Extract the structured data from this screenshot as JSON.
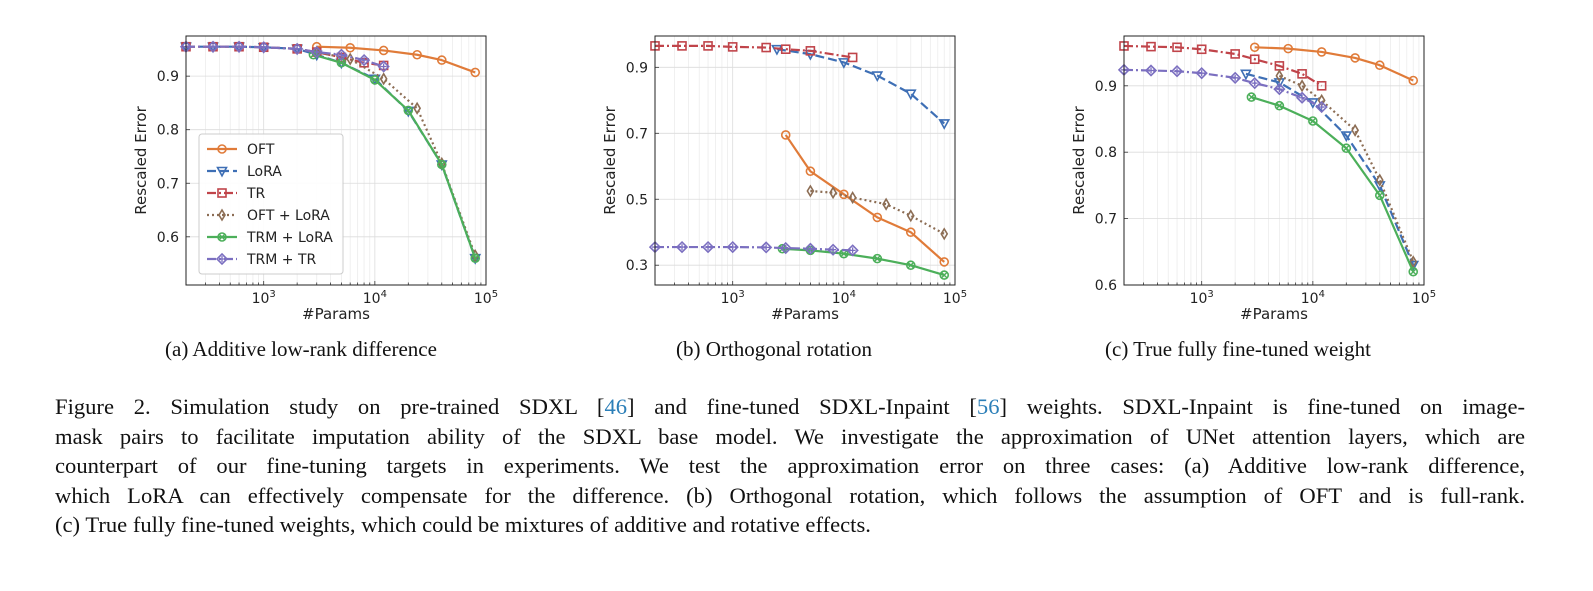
{
  "colors": {
    "OFT": "#e07b39",
    "LoRA": "#3e6fb5",
    "TR": "#c0444a",
    "OFT + LoRA": "#8c6d54",
    "TRM + LoRA": "#4caf5a",
    "TRM + TR": "#7b6fc0",
    "ref_link": "#2c7fb8"
  },
  "chart_data": [
    {
      "type": "line",
      "subtitle": "(a) Additive low-rank difference",
      "xlabel": "#Params",
      "ylabel": "Rescaled Error",
      "xscale": "log",
      "xlim": [
        200,
        100000
      ],
      "ylim": [
        0.51,
        0.975
      ],
      "yticks": [
        0.6,
        0.7,
        0.8,
        0.9
      ],
      "xticks": [
        "10^3",
        "10^4",
        "10^5"
      ],
      "grid": true,
      "legend": "lower-left",
      "series": [
        {
          "name": "OFT",
          "marker": "circle",
          "dash": "solid",
          "x": [
            3000,
            6000,
            12000,
            24000,
            40000,
            80000
          ],
          "y": [
            0.955,
            0.953,
            0.948,
            0.94,
            0.93,
            0.907
          ]
        },
        {
          "name": "LoRA",
          "marker": "triangle-down",
          "dash": "dashed",
          "x": [
            200,
            350,
            600,
            1000,
            2000,
            3000,
            5000,
            10000,
            20000,
            40000,
            80000
          ],
          "y": [
            0.955,
            0.955,
            0.955,
            0.954,
            0.951,
            0.94,
            0.925,
            0.895,
            0.835,
            0.735,
            0.56
          ]
        },
        {
          "name": "TR",
          "marker": "square",
          "dash": "dashdot",
          "x": [
            200,
            350,
            600,
            1000,
            2000,
            3000,
            5000,
            8000,
            12000
          ],
          "y": [
            0.955,
            0.955,
            0.955,
            0.954,
            0.951,
            0.945,
            0.935,
            0.925,
            0.92
          ]
        },
        {
          "name": "OFT + LoRA",
          "marker": "diamond",
          "dash": "dotted",
          "x": [
            3000,
            6000,
            12000,
            24000,
            40000,
            80000
          ],
          "y": [
            0.945,
            0.932,
            0.895,
            0.84,
            0.737,
            0.565
          ]
        },
        {
          "name": "TRM + LoRA",
          "marker": "x",
          "dash": "solid",
          "x": [
            2800,
            5000,
            10000,
            20000,
            40000,
            80000
          ],
          "y": [
            0.94,
            0.925,
            0.893,
            0.836,
            0.735,
            0.56
          ]
        },
        {
          "name": "TRM + TR",
          "marker": "plus",
          "dash": "dashdot",
          "x": [
            200,
            350,
            600,
            1000,
            2000,
            3000,
            5000,
            8000,
            12000
          ],
          "y": [
            0.955,
            0.955,
            0.955,
            0.954,
            0.951,
            0.945,
            0.94,
            0.93,
            0.918
          ]
        }
      ]
    },
    {
      "type": "line",
      "subtitle": "(b) Orthogonal rotation",
      "xlabel": "#Params",
      "ylabel": "Rescaled Error",
      "xscale": "log",
      "xlim": [
        200,
        100000
      ],
      "ylim": [
        0.24,
        0.995
      ],
      "yticks": [
        0.3,
        0.5,
        0.7,
        0.9
      ],
      "xticks": [
        "10^3",
        "10^4",
        "10^5"
      ],
      "grid": true,
      "series": [
        {
          "name": "OFT",
          "marker": "circle",
          "dash": "solid",
          "x": [
            3000,
            5000,
            10000,
            20000,
            40000,
            80000
          ],
          "y": [
            0.695,
            0.585,
            0.515,
            0.445,
            0.4,
            0.31
          ]
        },
        {
          "name": "LoRA",
          "marker": "triangle-down",
          "dash": "dashed",
          "x": [
            2500,
            5000,
            10000,
            20000,
            40000,
            80000
          ],
          "y": [
            0.955,
            0.94,
            0.915,
            0.875,
            0.82,
            0.73
          ]
        },
        {
          "name": "TR",
          "marker": "square",
          "dash": "dashdot",
          "x": [
            200,
            350,
            600,
            1000,
            2000,
            3000,
            5000,
            12000
          ],
          "y": [
            0.965,
            0.965,
            0.965,
            0.962,
            0.96,
            0.955,
            0.95,
            0.93
          ]
        },
        {
          "name": "OFT + LoRA",
          "marker": "diamond",
          "dash": "dotted",
          "x": [
            5000,
            8000,
            12000,
            24000,
            40000,
            80000
          ],
          "y": [
            0.525,
            0.52,
            0.505,
            0.485,
            0.45,
            0.395
          ]
        },
        {
          "name": "TRM + LoRA",
          "marker": "x",
          "dash": "solid",
          "x": [
            2800,
            5000,
            10000,
            20000,
            40000,
            80000
          ],
          "y": [
            0.35,
            0.345,
            0.335,
            0.32,
            0.3,
            0.27
          ]
        },
        {
          "name": "TRM + TR",
          "marker": "plus",
          "dash": "dashdot",
          "x": [
            200,
            350,
            600,
            1000,
            2000,
            3000,
            5000,
            8000,
            12000
          ],
          "y": [
            0.355,
            0.355,
            0.355,
            0.355,
            0.354,
            0.352,
            0.35,
            0.347,
            0.345
          ]
        }
      ]
    },
    {
      "type": "line",
      "subtitle": "(c) True fully fine-tuned weight",
      "xlabel": "#Params",
      "ylabel": "Rescaled Error",
      "xscale": "log",
      "xlim": [
        200,
        100000
      ],
      "ylim": [
        0.6,
        0.975
      ],
      "yticks": [
        0.6,
        0.7,
        0.8,
        0.9
      ],
      "xticks": [
        "10^3",
        "10^4",
        "10^5"
      ],
      "grid": true,
      "series": [
        {
          "name": "OFT",
          "marker": "circle",
          "dash": "solid",
          "x": [
            3000,
            6000,
            12000,
            24000,
            40000,
            80000
          ],
          "y": [
            0.958,
            0.956,
            0.951,
            0.942,
            0.931,
            0.908
          ]
        },
        {
          "name": "LoRA",
          "marker": "triangle-down",
          "dash": "dashed",
          "x": [
            2500,
            5000,
            10000,
            20000,
            40000,
            80000
          ],
          "y": [
            0.918,
            0.905,
            0.875,
            0.825,
            0.75,
            0.63
          ]
        },
        {
          "name": "TR",
          "marker": "square",
          "dash": "dashdot",
          "x": [
            200,
            350,
            600,
            1000,
            2000,
            3000,
            5000,
            8000,
            12000
          ],
          "y": [
            0.96,
            0.959,
            0.958,
            0.955,
            0.948,
            0.94,
            0.93,
            0.918,
            0.9
          ]
        },
        {
          "name": "OFT + LoRA",
          "marker": "diamond",
          "dash": "dotted",
          "x": [
            5000,
            8000,
            12000,
            24000,
            40000,
            80000
          ],
          "y": [
            0.915,
            0.9,
            0.878,
            0.833,
            0.758,
            0.635
          ]
        },
        {
          "name": "TRM + LoRA",
          "marker": "x",
          "dash": "solid",
          "x": [
            2800,
            5000,
            10000,
            20000,
            40000,
            80000
          ],
          "y": [
            0.883,
            0.87,
            0.847,
            0.806,
            0.735,
            0.62
          ]
        },
        {
          "name": "TRM + TR",
          "marker": "plus",
          "dash": "dashdot",
          "x": [
            200,
            350,
            600,
            1000,
            2000,
            3000,
            5000,
            8000,
            12000
          ],
          "y": [
            0.924,
            0.923,
            0.922,
            0.919,
            0.912,
            0.904,
            0.895,
            0.882,
            0.868
          ]
        }
      ]
    }
  ],
  "caption": {
    "lines": [
      [
        "Figure 2. Simulation study on pre-trained SDXL [",
        "46",
        "] and fine-tuned SDXL-Inpaint [",
        "56",
        "] weights. SDXL-Inpaint is fine-tuned on image-"
      ],
      [
        "mask pairs to facilitate imputation ability of the SDXL base model. We investigate the approximation of UNet attention layers, which are"
      ],
      [
        "counterpart of our fine-tuning targets in experiments. We test the approximation error on three cases: (a) Additive low-rank difference,"
      ],
      [
        "which LoRA can effectively compensate for the difference. (b) Orthogonal rotation, which follows the assumption of OFT and is full-rank."
      ],
      [
        "(c) True fully fine-tuned weights, which could be mixtures of additive and rotative effects."
      ]
    ]
  }
}
